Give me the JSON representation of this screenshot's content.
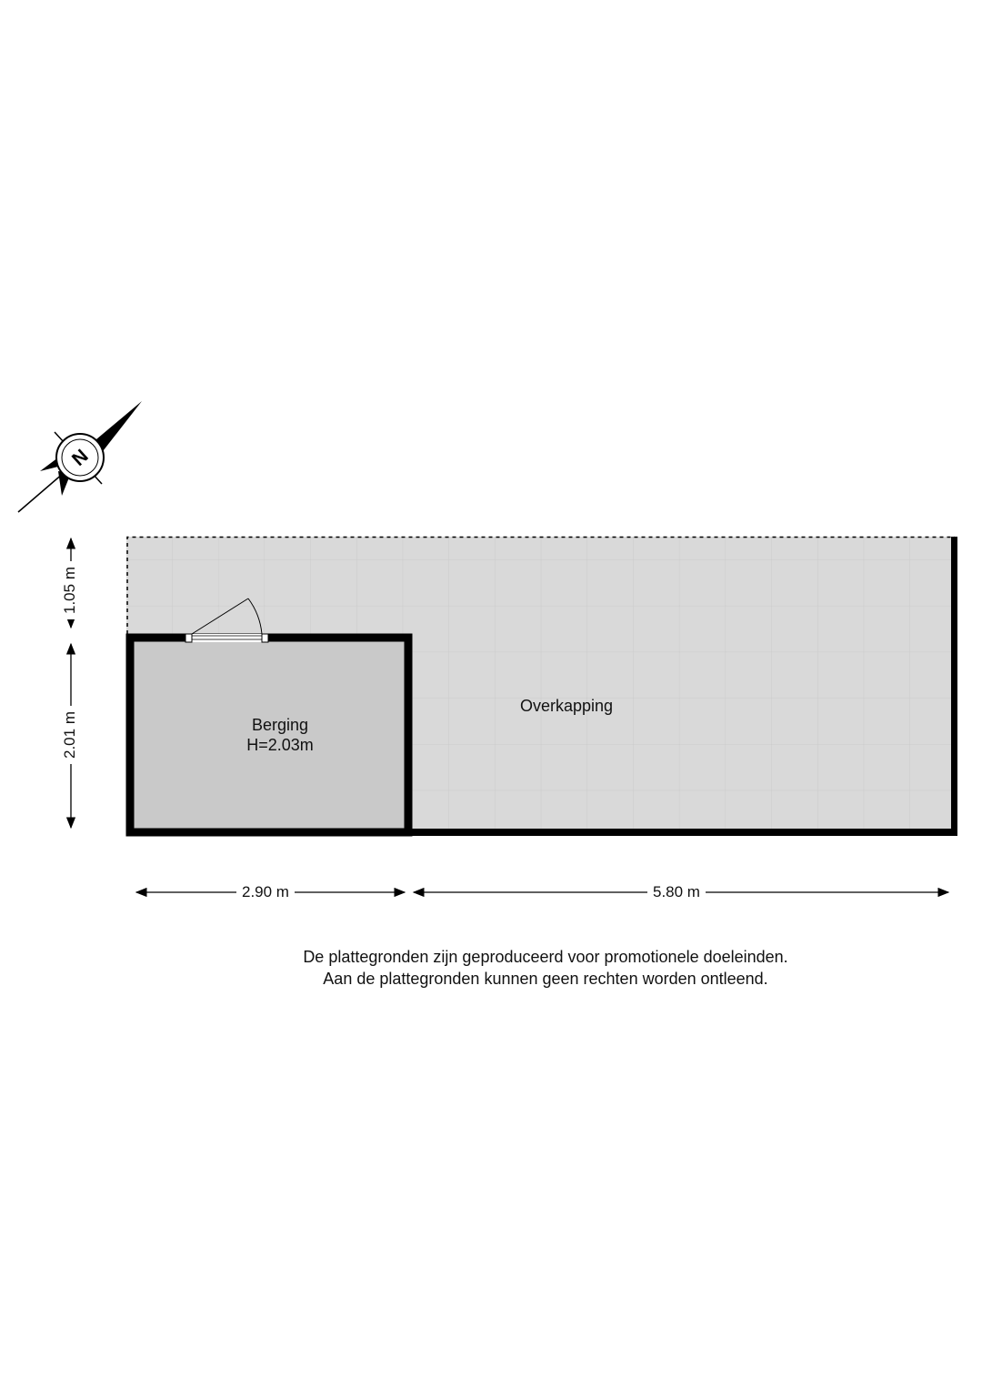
{
  "rooms": [
    {
      "name": "Overkapping"
    },
    {
      "name": "Berging",
      "height": "H=2.03m"
    }
  ],
  "dimensions": {
    "vertical_top": "1.05 m",
    "vertical_bottom": "2.01 m",
    "horizontal_left": "2.90 m",
    "horizontal_right": "5.80 m"
  },
  "compass": {
    "letter": "N"
  },
  "disclaimer": {
    "line1": "De plattegronden zijn geproduceerd voor promotionele doeleinden.",
    "line2": "Aan de plattegronden kunnen geen rechten worden ontleend."
  },
  "colors": {
    "overkapping_fill": "#d9d9d9",
    "berging_fill": "#c9c9c9",
    "wall": "#000000"
  }
}
